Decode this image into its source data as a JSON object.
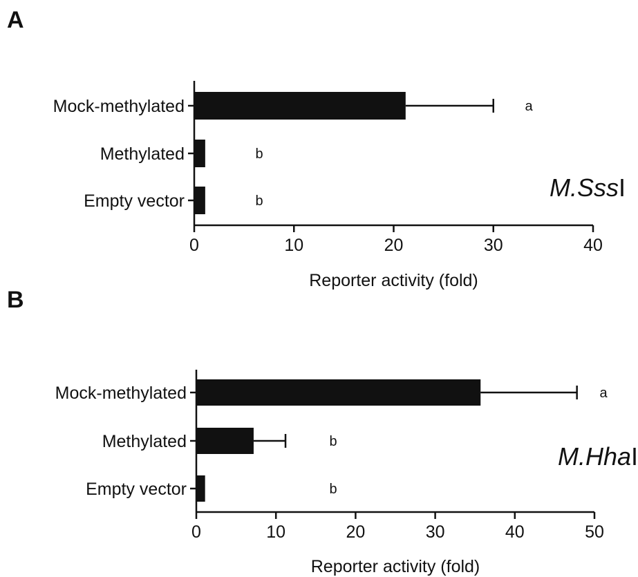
{
  "chart_data": [
    {
      "panel": "A",
      "type": "bar",
      "orientation": "horizontal",
      "categories": [
        "Mock-methylated",
        "Methylated",
        "Empty vector"
      ],
      "values": [
        21.2,
        1.1,
        1.1
      ],
      "error": [
        8.8,
        0,
        0
      ],
      "significance": [
        "a",
        "b",
        "b"
      ],
      "xlabel": "Reporter activity (fold)",
      "xlim": [
        0,
        40
      ],
      "xticks": [
        0,
        10,
        20,
        30,
        40
      ],
      "enzyme": {
        "italic": "M.Sss",
        "roman": "I"
      }
    },
    {
      "panel": "B",
      "type": "bar",
      "orientation": "horizontal",
      "categories": [
        "Mock-methylated",
        "Methylated",
        "Empty vector"
      ],
      "values": [
        35.7,
        7.2,
        1.1
      ],
      "error": [
        12.1,
        4.0,
        0
      ],
      "significance": [
        "a",
        "b",
        "b"
      ],
      "xlabel": "Reporter activity (fold)",
      "xlim": [
        0,
        50
      ],
      "xticks": [
        0,
        10,
        20,
        30,
        40,
        50
      ],
      "enzyme": {
        "italic": "M.Hha",
        "roman": "I"
      }
    }
  ]
}
